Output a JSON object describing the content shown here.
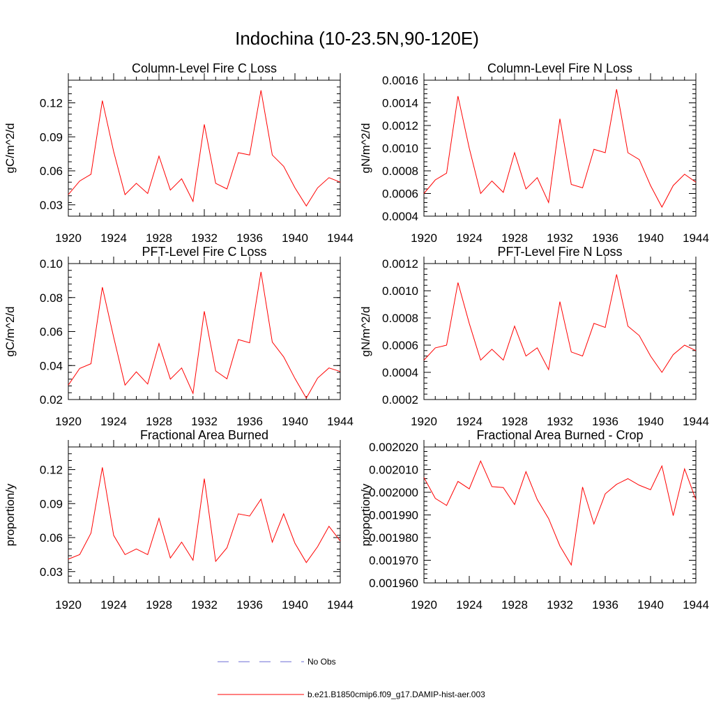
{
  "figure_title": "Indochina (10-23.5N,90-120E)",
  "legend": [
    {
      "label": "No Obs",
      "color": "#6b6bd6",
      "style": "dashed"
    },
    {
      "label": "b.e21.B1850cmip6.f09_g17.DAMIP-hist-aer.003",
      "color": "#ff0000",
      "style": "solid"
    }
  ],
  "chart_data": [
    {
      "type": "line",
      "title": "Column-Level Fire C Loss",
      "ylabel": "gC/m^2/d",
      "xlim": [
        1920,
        1944
      ],
      "ylim": [
        0.02,
        0.14
      ],
      "xticks": [
        1920,
        1924,
        1928,
        1932,
        1936,
        1940,
        1944
      ],
      "xtick_labels": [
        "1920",
        "1924",
        "1928",
        "1932",
        "1936",
        "1940",
        "1944"
      ],
      "yticks": [
        0.03,
        0.06,
        0.09,
        0.12
      ],
      "ytick_labels": [
        "0.03",
        "0.06",
        "0.09",
        "0.12"
      ],
      "series": [
        {
          "color": "#ff0000",
          "x": [
            1920,
            1921,
            1922,
            1923,
            1924,
            1925,
            1926,
            1927,
            1928,
            1929,
            1930,
            1931,
            1932,
            1933,
            1934,
            1935,
            1936,
            1937,
            1938,
            1939,
            1940,
            1941,
            1942,
            1943,
            1944
          ],
          "values": [
            0.039,
            0.051,
            0.057,
            0.122,
            0.077,
            0.039,
            0.049,
            0.04,
            0.073,
            0.043,
            0.053,
            0.033,
            0.101,
            0.049,
            0.044,
            0.076,
            0.074,
            0.131,
            0.074,
            0.064,
            0.045,
            0.029,
            0.045,
            0.054,
            0.05
          ]
        }
      ]
    },
    {
      "type": "line",
      "title": "Column-Level Fire N Loss",
      "ylabel": "gN/m^2/d",
      "xlim": [
        1920,
        1944
      ],
      "ylim": [
        0.0004,
        0.0016
      ],
      "xticks": [
        1920,
        1924,
        1928,
        1932,
        1936,
        1940,
        1944
      ],
      "xtick_labels": [
        "1920",
        "1924",
        "1928",
        "1932",
        "1936",
        "1940",
        "1944"
      ],
      "yticks": [
        0.0004,
        0.0006,
        0.0008,
        0.001,
        0.0012,
        0.0014,
        0.0016
      ],
      "ytick_labels": [
        "0.0004",
        "0.0006",
        "0.0008",
        "0.0010",
        "0.0012",
        "0.0014",
        "0.0016"
      ],
      "series": [
        {
          "color": "#ff0000",
          "x": [
            1920,
            1921,
            1922,
            1923,
            1924,
            1925,
            1926,
            1927,
            1928,
            1929,
            1930,
            1931,
            1932,
            1933,
            1934,
            1935,
            1936,
            1937,
            1938,
            1939,
            1940,
            1941,
            1942,
            1943,
            1944
          ],
          "values": [
            0.0006,
            0.00072,
            0.00078,
            0.00146,
            0.001,
            0.0006,
            0.00071,
            0.00061,
            0.00096,
            0.00064,
            0.00074,
            0.00052,
            0.00126,
            0.00068,
            0.00065,
            0.00099,
            0.00096,
            0.00152,
            0.00096,
            0.0009,
            0.00067,
            0.00048,
            0.00067,
            0.00077,
            0.0007
          ]
        }
      ]
    },
    {
      "type": "line",
      "title": "PFT-Level Fire C Loss",
      "ylabel": "gC/m^2/d",
      "xlim": [
        1920,
        1944
      ],
      "ylim": [
        0.02,
        0.1
      ],
      "xticks": [
        1920,
        1924,
        1928,
        1932,
        1936,
        1940,
        1944
      ],
      "xtick_labels": [
        "1920",
        "1924",
        "1928",
        "1932",
        "1936",
        "1940",
        "1944"
      ],
      "yticks": [
        0.02,
        0.04,
        0.06,
        0.08,
        0.1
      ],
      "ytick_labels": [
        "0.02",
        "0.04",
        "0.06",
        "0.08",
        "0.10"
      ],
      "series": [
        {
          "color": "#ff0000",
          "x": [
            1920,
            1921,
            1922,
            1923,
            1924,
            1925,
            1926,
            1927,
            1928,
            1929,
            1930,
            1931,
            1932,
            1933,
            1934,
            1935,
            1936,
            1937,
            1938,
            1939,
            1940,
            1941,
            1942,
            1943,
            1944
          ],
          "values": [
            0.0285,
            0.0383,
            0.0411,
            0.0861,
            0.0567,
            0.0285,
            0.0363,
            0.0291,
            0.0529,
            0.032,
            0.0386,
            0.0236,
            0.0719,
            0.0368,
            0.0322,
            0.0553,
            0.0534,
            0.0951,
            0.0538,
            0.0451,
            0.0324,
            0.0208,
            0.0326,
            0.0386,
            0.0365
          ]
        }
      ]
    },
    {
      "type": "line",
      "title": "PFT-Level Fire N Loss",
      "ylabel": "gN/m^2/d",
      "xlim": [
        1920,
        1944
      ],
      "ylim": [
        0.0002,
        0.0012
      ],
      "xticks": [
        1920,
        1924,
        1928,
        1932,
        1936,
        1940,
        1944
      ],
      "xtick_labels": [
        "1920",
        "1924",
        "1928",
        "1932",
        "1936",
        "1940",
        "1944"
      ],
      "yticks": [
        0.0002,
        0.0004,
        0.0006,
        0.0008,
        0.001,
        0.0012
      ],
      "ytick_labels": [
        "0.0002",
        "0.0004",
        "0.0006",
        "0.0008",
        "0.0010",
        "0.0012"
      ],
      "series": [
        {
          "color": "#ff0000",
          "x": [
            1920,
            1921,
            1922,
            1923,
            1924,
            1925,
            1926,
            1927,
            1928,
            1929,
            1930,
            1931,
            1932,
            1933,
            1934,
            1935,
            1936,
            1937,
            1938,
            1939,
            1940,
            1941,
            1942,
            1943,
            1944
          ],
          "values": [
            0.00049,
            0.00058,
            0.0006,
            0.00106,
            0.00076,
            0.00049,
            0.00057,
            0.00049,
            0.00074,
            0.00052,
            0.00058,
            0.00042,
            0.00092,
            0.00055,
            0.00052,
            0.00076,
            0.00073,
            0.00112,
            0.00074,
            0.00067,
            0.00052,
            0.0004,
            0.00053,
            0.0006,
            0.00056
          ]
        }
      ]
    },
    {
      "type": "line",
      "title": "Fractional Area Burned",
      "ylabel": "proportion/y",
      "xlim": [
        1920,
        1944
      ],
      "ylim": [
        0.02,
        0.14
      ],
      "xticks": [
        1920,
        1924,
        1928,
        1932,
        1936,
        1940,
        1944
      ],
      "xtick_labels": [
        "1920",
        "1924",
        "1928",
        "1932",
        "1936",
        "1940",
        "1944"
      ],
      "yticks": [
        0.03,
        0.06,
        0.09,
        0.12
      ],
      "ytick_labels": [
        "0.03",
        "0.06",
        "0.09",
        "0.12"
      ],
      "series": [
        {
          "color": "#ff0000",
          "x": [
            1920,
            1921,
            1922,
            1923,
            1924,
            1925,
            1926,
            1927,
            1928,
            1929,
            1930,
            1931,
            1932,
            1933,
            1934,
            1935,
            1936,
            1937,
            1938,
            1939,
            1940,
            1941,
            1942,
            1943,
            1944
          ],
          "values": [
            0.041,
            0.045,
            0.064,
            0.122,
            0.062,
            0.045,
            0.05,
            0.045,
            0.077,
            0.042,
            0.056,
            0.04,
            0.112,
            0.039,
            0.051,
            0.081,
            0.079,
            0.094,
            0.056,
            0.081,
            0.055,
            0.038,
            0.052,
            0.07,
            0.057
          ]
        }
      ]
    },
    {
      "type": "line",
      "title": "Fractional Area Burned - Crop",
      "ylabel": "proportion/y",
      "xlim": [
        1920,
        1944
      ],
      "ylim": [
        0.00196,
        0.00202
      ],
      "xticks": [
        1920,
        1924,
        1928,
        1932,
        1936,
        1940,
        1944
      ],
      "xtick_labels": [
        "1920",
        "1924",
        "1928",
        "1932",
        "1936",
        "1940",
        "1944"
      ],
      "yticks": [
        0.00196,
        0.00197,
        0.00198,
        0.00199,
        0.002,
        0.00201,
        0.00202
      ],
      "ytick_labels": [
        "0.001960",
        "0.001970",
        "0.001980",
        "0.001990",
        "0.002000",
        "0.002010",
        "0.002020"
      ],
      "series": [
        {
          "color": "#ff0000",
          "x": [
            1920,
            1921,
            1922,
            1923,
            1924,
            1925,
            1926,
            1927,
            1928,
            1929,
            1930,
            1931,
            1932,
            1933,
            1934,
            1935,
            1936,
            1937,
            1938,
            1939,
            1940,
            1941,
            1942,
            1943,
            1944
          ],
          "values": [
            0.0020065,
            0.0019973,
            0.0019942,
            0.0020048,
            0.0020015,
            0.0020138,
            0.0020025,
            0.0020021,
            0.0019946,
            0.0020091,
            0.0019968,
            0.0019884,
            0.0019763,
            0.0019679,
            0.0020023,
            0.001986,
            0.0019993,
            0.0020035,
            0.002006,
            0.0020031,
            0.0020011,
            0.0020116,
            0.0019897,
            0.0020103,
            0.0019967
          ]
        }
      ]
    }
  ]
}
